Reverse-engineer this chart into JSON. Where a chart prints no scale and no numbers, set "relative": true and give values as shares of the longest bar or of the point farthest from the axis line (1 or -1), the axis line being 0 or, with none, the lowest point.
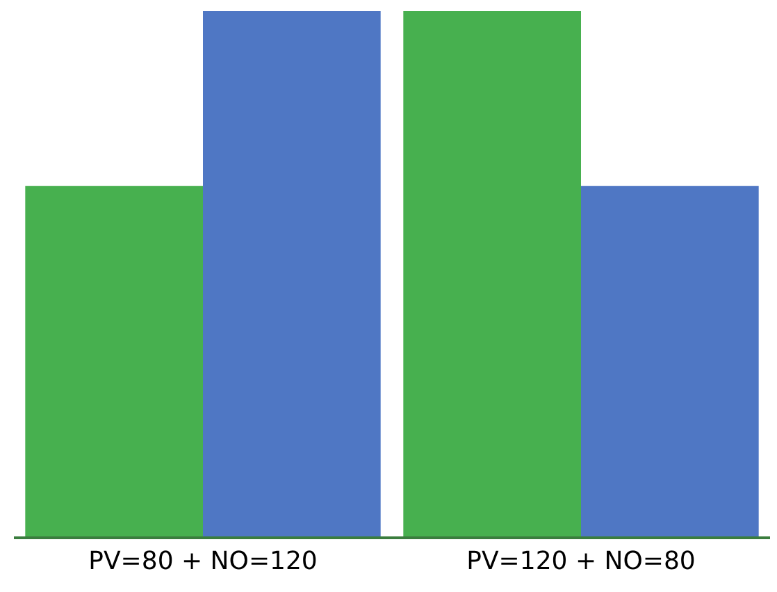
{
  "chart_data": {
    "type": "bar",
    "relative": true,
    "categories": [
      "PV=80 + NO=120",
      "PV=120 + NO=80"
    ],
    "series": [
      {
        "color": "#47b04f",
        "values": [
          0.667,
          1
        ]
      },
      {
        "color": "#4f77c4",
        "values": [
          1,
          0.667
        ]
      }
    ]
  }
}
